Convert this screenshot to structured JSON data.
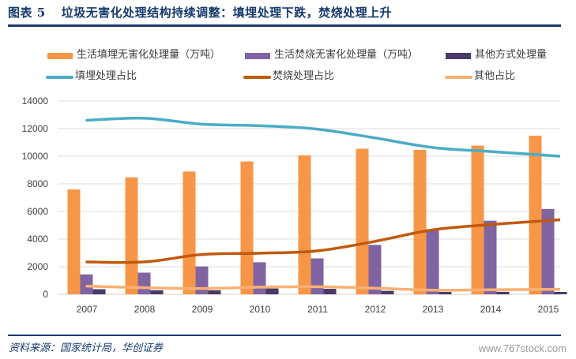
{
  "header": {
    "figure_label": "图表 5",
    "title": "垃圾无害化处理结构持续调整：填埋处理下跌，焚烧处理上升"
  },
  "footer": {
    "source": "资料来源：国家统计局，华创证券",
    "watermark": "www.767stock.com"
  },
  "chart_data": {
    "type": "bar",
    "title": "垃圾无害化处理结构持续调整：填埋处理下跌，焚烧处理上升",
    "xlabel": "",
    "ylabel": "",
    "categories": [
      "2007",
      "2008",
      "2009",
      "2010",
      "2011",
      "2012",
      "2013",
      "2014",
      "2015"
    ],
    "ylim": [
      0,
      14000
    ],
    "yticks": [
      0,
      2000,
      4000,
      6000,
      8000,
      10000,
      12000,
      14000
    ],
    "ytick_labels": [
      "0",
      "2000",
      "4000",
      "6000",
      "8000",
      "10000",
      "12000",
      "14000"
    ],
    "grid": true,
    "legend_position": "top",
    "series": [
      {
        "name": "生活填埋无害化处理量（万吨）",
        "type": "bar",
        "color": "#F79646",
        "values": [
          7590,
          8470,
          8890,
          9620,
          10060,
          10540,
          10460,
          10770,
          11490
        ]
      },
      {
        "name": "生活焚烧无害化处理量（万吨）",
        "type": "bar",
        "color": "#8064A2",
        "values": [
          1440,
          1570,
          2020,
          2320,
          2600,
          3580,
          4630,
          5330,
          6180
        ]
      },
      {
        "name": "其他方式处理量",
        "type": "bar",
        "color": "#4B3A66",
        "values": [
          370,
          290,
          290,
          420,
          400,
          250,
          170,
          180,
          170
        ]
      },
      {
        "name": "填埋处理占比",
        "type": "line",
        "color": "#4BACC6",
        "values": [
          12600,
          12750,
          12320,
          12210,
          11960,
          11320,
          10630,
          10340,
          10060
        ]
      },
      {
        "name": "焚烧处理占比",
        "type": "line",
        "color": "#C0590E",
        "values": [
          2340,
          2350,
          2880,
          2980,
          3150,
          3840,
          4670,
          5050,
          5340
        ]
      },
      {
        "name": "其他占比",
        "type": "line",
        "color": "#FAB074",
        "values": [
          590,
          480,
          420,
          520,
          550,
          440,
          300,
          330,
          360
        ]
      }
    ]
  }
}
